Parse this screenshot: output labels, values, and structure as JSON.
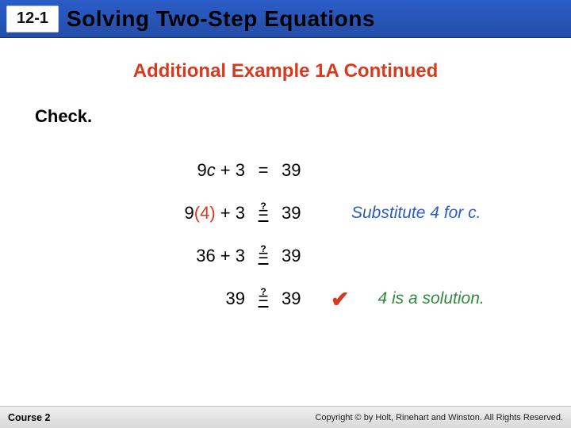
{
  "header": {
    "lesson_number": "12-1",
    "lesson_title": "Solving Two-Step Equations",
    "bar_bg_top": "#2b5dc7",
    "bar_bg_bottom": "#234ea8",
    "chip_bg": "#ffffff",
    "chip_text_color": "#111111",
    "title_color": "#000000"
  },
  "subtitle": {
    "text": "Additional Example 1A Continued",
    "color": "#d63a1f",
    "fontsize": 24
  },
  "check_label": "Check.",
  "work": {
    "font_size": 22,
    "explain_font_size": 21,
    "explain_color_sub": "#2b5dc7",
    "verify_color": "#2e8a3d",
    "substituted_color": "#d63a1f",
    "rows": [
      {
        "lhs_plain": "9c + 3",
        "lhs_has_italic_c": true,
        "relation": "=",
        "question_mark": false,
        "rhs": "39",
        "explain": ""
      },
      {
        "lhs_prefix": "9",
        "lhs_sub": "(4)",
        "lhs_suffix": " + 3",
        "relation": "=",
        "question_mark": true,
        "rhs": "39",
        "explain": "Substitute 4 for c."
      },
      {
        "lhs_plain": "36 + 3",
        "relation": "=",
        "question_mark": true,
        "rhs": "39",
        "explain": ""
      },
      {
        "lhs_plain": "39",
        "relation": "=",
        "question_mark": true,
        "rhs": "39",
        "checkmark": true,
        "explain": "4 is a solution."
      }
    ]
  },
  "footer": {
    "course": "Course 2",
    "copyright": "Copyright © by Holt, Rinehart and Winston. All Rights Reserved.",
    "bg_top": "#efefef",
    "bg_bottom": "#d9d9d9"
  }
}
